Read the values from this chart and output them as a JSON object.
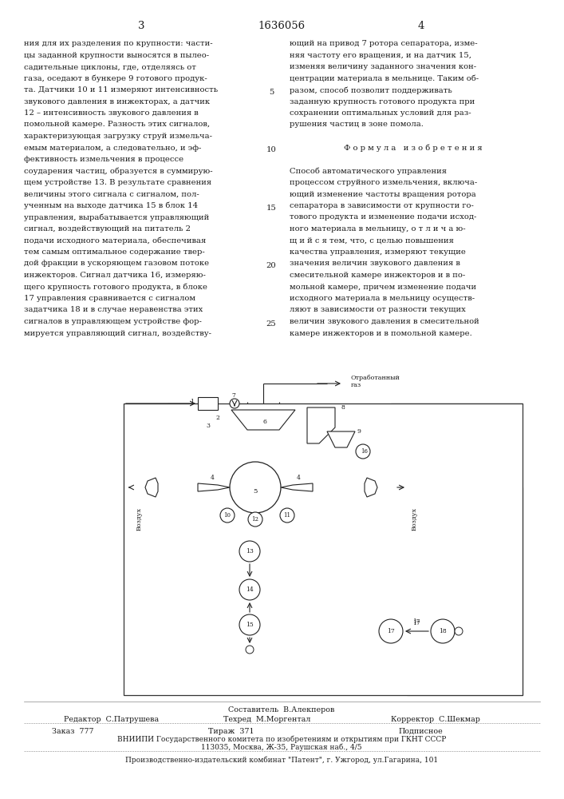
{
  "page_number_left": "3",
  "patent_number": "1636056",
  "page_number_right": "4",
  "background_color": "#ffffff",
  "text_color": "#1a1a1a",
  "left_column_text": "ния для их разделения по крупности: части-\nцы заданной крупности выносятся в пылео-\nсадительные циклоны, где, отделяясь от\nгаза, оседают в бункере 9 готового продук-\nта. Датчики 10 и 11 измеряют интенсивность\nзвукового давления в инжекторах, а датчик\n12 – интенсивность звукового давления в\nпомольной камере. Разность этих сигналов,\nхарактеризующая загрузку струй измельча-\nемым материалом, а следовательно, и эф-\nфективность измельчения в процессе\nсоударения частиц, образуется в суммирую-\nщем устройстве 13. В результате сравнения\nвеличины этого сигнала с сигналом, пол-\nученным на выходе датчика 15 в блок 14\nуправления, вырабатывается управляющий\nсигнал, воздействующий на питатель 2\nподачи исходного материала, обеспечивая\nтем самым оптимальное содержание твер-\nдой фракции в ускоряющем газовом потоке\nинжекторов. Сигнал датчика 16, измеряю-\nщего крупность готового продукта, в блоке\n17 управления сравнивается с сигналом\nзадатчика 18 и в случае неравенства этих\nсигналов в управляющем устройстве фор-\nмируется управляющий сигнал, воздейству-",
  "right_column_text": "ющий на привод 7 ротора сепаратора, изме-\nняя частоту его вращения, и на датчик 15,\nизменяя величину заданного значения кон-\nцентрации материала в мельнице. Таким об-\nразом, способ позволит поддерживать\nзаданную крупность готового продукта при\nсохранении оптимальных условий для раз-\nрушения частиц в зоне помола.\n\nФ о р м у л а   и з о б р е т е н и я\n\nСпособ автоматического управления\nпроцессом струйного измельчения, включа-\nющий изменение частоты вращения ротора\nсепаратора в зависимости от крупности го-\nтового продукта и изменение подачи исход-\nного материала в мельницу, о т л и ч а ю-\nщ и й с я тем, что, с целью повышения\nкачества управления, измеряют текущие\nзначения величин звукового давления в\nсмесительной камере инжекторов и в по-\nмольной камере, причем изменение подачи\nисходного материала в мельницу осуществ-\nляют в зависимости от разности текущих\nвеличин звукового давления в смесительной\nкамере инжекторов и в помольной камере.",
  "compiler_line": "Составитель  В.Алекперов",
  "editor_line": "Редактор  С.Патрушева",
  "techred_line": "Техред  М.Моргентал",
  "corrector_line": "Корректор  С.Шекмар",
  "order_label": "Заказ  777",
  "tirazh_label": "Тираж  371",
  "podpisnoe_label": "Подписное",
  "vniipie_line": "ВНИИПИ Государственного комитета по изобретениям и открытиям при ГКНТ СССР",
  "address_line": "113035, Москва, Ж-35, Раушская наб., 4/5",
  "publisher_line": "Производственно-издательский комбинат \"Патент\", г. Ужгород, ул.Гагарина, 101"
}
